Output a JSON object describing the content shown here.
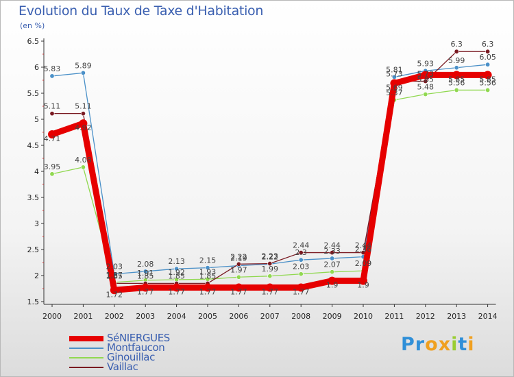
{
  "title": "Evolution du Taux de Taxe d'Habitation",
  "unit": "(en %)",
  "logo": {
    "text": "Proxiti",
    "letters": [
      {
        "ch": "P",
        "color": "#2f8fd8"
      },
      {
        "ch": "r",
        "color": "#2f8fd8"
      },
      {
        "ch": "o",
        "color": "#f0a020"
      },
      {
        "ch": "x",
        "color": "#f0a020"
      },
      {
        "ch": "i",
        "color": "#9acd32"
      },
      {
        "ch": "t",
        "color": "#2f8fd8"
      },
      {
        "ch": "i",
        "color": "#f0a020"
      }
    ]
  },
  "chart_data": {
    "type": "line",
    "title": "Evolution du Taux de Taxe d'Habitation",
    "ylabel": "(en %)",
    "xlabel": "",
    "ylim": [
      1.5,
      6.5
    ],
    "yticks": [
      "1.5",
      "2",
      "2.5",
      "3",
      "3.5",
      "4",
      "4.5",
      "5",
      "5.5",
      "6",
      "6.5"
    ],
    "categories": [
      "2000",
      "2001",
      "2002",
      "2003",
      "2004",
      "2005",
      "2006",
      "2007",
      "2008",
      "2009",
      "2010",
      "2011",
      "2012",
      "2013",
      "2014"
    ],
    "series": [
      {
        "name": "SéNIERGUES",
        "color": "#e60000",
        "values": [
          4.71,
          4.92,
          1.72,
          1.77,
          1.77,
          1.77,
          1.77,
          1.77,
          1.77,
          1.9,
          1.9,
          5.69,
          5.85,
          5.85,
          5.85
        ],
        "labels": [
          "4.71",
          "4.92",
          "1.72",
          "1.77",
          "1.77",
          "1.77",
          "1.77",
          "1.77",
          "1.77",
          "1.9",
          "1.9",
          "5.69",
          "5.85",
          "5.85",
          "5.85"
        ]
      },
      {
        "name": "Montfaucon",
        "color": "#4a90c8",
        "values": [
          5.83,
          5.89,
          2.03,
          2.08,
          2.13,
          2.15,
          2.19,
          2.22,
          2.3,
          2.33,
          2.36,
          5.81,
          5.93,
          5.99,
          6.05
        ],
        "labels": [
          "5.83",
          "5.89",
          "2.03",
          "2.08",
          "2.13",
          "2.15",
          "2.19",
          "2.22",
          "2.3",
          "2.33",
          "2.36",
          "5.81",
          "5.93",
          "5.99",
          "6.05"
        ]
      },
      {
        "name": "Ginouillac",
        "color": "#90d850",
        "values": [
          3.95,
          4.08,
          1.87,
          1.91,
          1.92,
          1.93,
          1.97,
          1.99,
          2.03,
          2.07,
          2.09,
          5.37,
          5.48,
          5.56,
          5.56
        ],
        "labels": [
          "3.95",
          "4.08",
          "1.87",
          "1.91",
          "1.92",
          "1.93",
          "1.97",
          "1.99",
          "2.03",
          "2.07",
          "2.09",
          "5.37",
          "5.48",
          "5.56",
          "5.56"
        ]
      },
      {
        "name": "Vaillac",
        "color": "#7a1a22",
        "values": [
          5.11,
          5.11,
          1.85,
          1.85,
          1.85,
          1.85,
          2.22,
          2.23,
          2.44,
          2.44,
          2.44,
          5.73,
          5.73,
          6.3,
          6.3
        ],
        "labels": [
          "5.11",
          "5.11",
          "1.85",
          "1.85",
          "1.85",
          "1.85",
          "2.22",
          "2.23",
          "2.44",
          "2.44",
          "2.44",
          "5.73",
          "5.73",
          "6.3",
          "6.3"
        ]
      }
    ]
  }
}
